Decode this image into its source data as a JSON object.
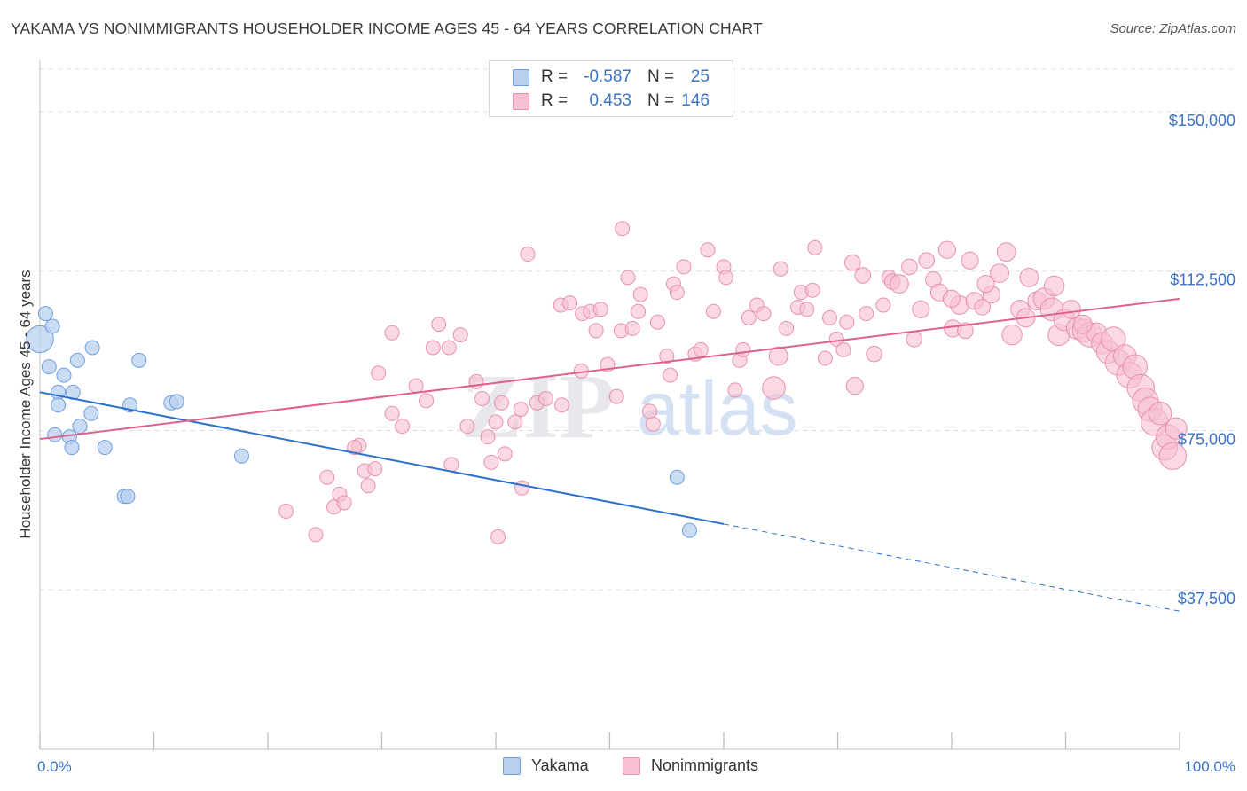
{
  "header": {
    "title": "YAKAMA VS NONIMMIGRANTS HOUSEHOLDER INCOME AGES 45 - 64 YEARS CORRELATION CHART",
    "source": "Source: ZipAtlas.com"
  },
  "watermark": {
    "zip": "ZIP",
    "atlas": "atlas"
  },
  "legend": {
    "rows": [
      {
        "r_label": "R =",
        "r_value": "-0.587",
        "n_label": "N =",
        "n_value": "25"
      },
      {
        "r_label": "R =",
        "r_value": "0.453",
        "n_label": "N =",
        "n_value": "146"
      }
    ]
  },
  "bottom_legend": {
    "series1": "Yakama",
    "series2": "Nonimmigrants"
  },
  "colors": {
    "yakama_fill": "#b8d0f0",
    "yakama_stroke": "#6f9fdc",
    "yakama_line": "#2b6fd0",
    "nonimm_fill": "#f7bfd0",
    "nonimm_stroke": "#e890ae",
    "nonimm_line": "#e0608c",
    "tick_label": "#3b73c4",
    "grid": "#dddddd"
  },
  "chart_data": {
    "type": "scatter",
    "title": "YAKAMA VS NONIMMIGRANTS HOUSEHOLDER INCOME AGES 45 - 64 YEARS CORRELATION CHART",
    "xlabel": "",
    "ylabel": "Householder Income Ages 45 - 64 years",
    "xlim": [
      0,
      100
    ],
    "ylim": [
      0,
      160000
    ],
    "x_tick_labels": [
      "0.0%",
      "100.0%"
    ],
    "y_ticks": [
      37500,
      75000,
      112500,
      150000
    ],
    "y_tick_labels": [
      "$37,500",
      "$75,000",
      "$112,500",
      "$150,000"
    ],
    "series": [
      {
        "name": "Yakama",
        "r": -0.587,
        "n": 25,
        "trend": {
          "x0": 0,
          "y0": 84000,
          "x1": 60,
          "y1": 53000,
          "dash_to_x": 100,
          "dash_to_y": 32500
        },
        "points": [
          [
            0,
            96500,
            1.9
          ],
          [
            0.5,
            102500,
            1
          ],
          [
            1.1,
            99500,
            1
          ],
          [
            0.8,
            90000,
            1
          ],
          [
            2.1,
            88000,
            1
          ],
          [
            3.3,
            91500,
            1
          ],
          [
            4.6,
            94500,
            1
          ],
          [
            1.6,
            84000,
            1
          ],
          [
            2.9,
            84000,
            1
          ],
          [
            1.6,
            81000,
            1
          ],
          [
            4.5,
            79000,
            1
          ],
          [
            1.3,
            74000,
            1
          ],
          [
            2.6,
            73500,
            1
          ],
          [
            3.5,
            76000,
            1
          ],
          [
            2.8,
            71000,
            1
          ],
          [
            5.7,
            71000,
            1
          ],
          [
            7.9,
            81000,
            1
          ],
          [
            8.7,
            91500,
            1
          ],
          [
            11.5,
            81500,
            1
          ],
          [
            12.0,
            81800,
            1
          ],
          [
            7.4,
            59500,
            1
          ],
          [
            7.7,
            59500,
            1
          ],
          [
            17.7,
            69000,
            1
          ],
          [
            55.9,
            64000,
            1
          ],
          [
            57.0,
            51500,
            1
          ]
        ]
      },
      {
        "name": "Nonimmigrants",
        "r": 0.453,
        "n": 146,
        "trend": {
          "x0": 0,
          "y0": 73000,
          "x1": 100,
          "y1": 106000
        },
        "points": [
          [
            21.6,
            56000,
            1
          ],
          [
            24.2,
            50500,
            1
          ],
          [
            25.2,
            64000,
            1
          ],
          [
            25.8,
            57000,
            1
          ],
          [
            26.3,
            60000,
            1
          ],
          [
            26.7,
            58000,
            1
          ],
          [
            28.0,
            71500,
            1
          ],
          [
            27.6,
            71000,
            1
          ],
          [
            28.5,
            65500,
            1
          ],
          [
            28.8,
            62000,
            1
          ],
          [
            29.4,
            66000,
            1
          ],
          [
            29.7,
            88500,
            1
          ],
          [
            30.9,
            98000,
            1
          ],
          [
            30.9,
            79000,
            1
          ],
          [
            31.8,
            76000,
            1
          ],
          [
            33.0,
            85500,
            1
          ],
          [
            33.9,
            82000,
            1
          ],
          [
            34.5,
            94500,
            1
          ],
          [
            35.0,
            100000,
            1
          ],
          [
            35.9,
            94500,
            1
          ],
          [
            36.1,
            67000,
            1
          ],
          [
            36.9,
            97500,
            1
          ],
          [
            37.5,
            76000,
            1
          ],
          [
            38.3,
            86500,
            1
          ],
          [
            38.8,
            82500,
            1
          ],
          [
            39.3,
            73500,
            1
          ],
          [
            39.6,
            67500,
            1
          ],
          [
            40.0,
            77000,
            1
          ],
          [
            40.5,
            81500,
            1
          ],
          [
            40.2,
            50000,
            1
          ],
          [
            40.8,
            69500,
            1
          ],
          [
            41.7,
            77000,
            1
          ],
          [
            42.2,
            80000,
            1
          ],
          [
            42.3,
            61500,
            1
          ],
          [
            42.8,
            116500,
            1
          ],
          [
            43.6,
            81500,
            1
          ],
          [
            44.4,
            82500,
            1
          ],
          [
            45.7,
            104500,
            1
          ],
          [
            45.8,
            81000,
            1
          ],
          [
            46.5,
            105000,
            1
          ],
          [
            47.5,
            89000,
            1
          ],
          [
            47.6,
            102500,
            1
          ],
          [
            48.3,
            103000,
            1
          ],
          [
            48.8,
            98500,
            1
          ],
          [
            49.2,
            103500,
            1
          ],
          [
            49.8,
            90500,
            1
          ],
          [
            50.6,
            83000,
            1
          ],
          [
            51.0,
            98500,
            1
          ],
          [
            51.1,
            122500,
            1
          ],
          [
            51.6,
            111000,
            1
          ],
          [
            52.0,
            99000,
            1
          ],
          [
            52.5,
            103000,
            1
          ],
          [
            52.7,
            107000,
            1
          ],
          [
            53.5,
            79500,
            1
          ],
          [
            53.8,
            76500,
            1
          ],
          [
            54.2,
            100500,
            1
          ],
          [
            55.0,
            92500,
            1
          ],
          [
            55.3,
            88000,
            1
          ],
          [
            55.6,
            109500,
            1
          ],
          [
            55.9,
            107500,
            1
          ],
          [
            56.5,
            113500,
            1
          ],
          [
            57.5,
            93000,
            1
          ],
          [
            58.0,
            94000,
            1
          ],
          [
            58.6,
            117500,
            1
          ],
          [
            59.1,
            103000,
            1
          ],
          [
            60.0,
            113500,
            1
          ],
          [
            60.2,
            111000,
            1
          ],
          [
            61.0,
            84500,
            1
          ],
          [
            61.4,
            91500,
            1
          ],
          [
            61.7,
            94000,
            1
          ],
          [
            62.2,
            101500,
            1
          ],
          [
            62.9,
            104500,
            1
          ],
          [
            63.5,
            102500,
            1
          ],
          [
            64.4,
            85000,
            1.6
          ],
          [
            64.8,
            92500,
            1.3
          ],
          [
            65.0,
            113000,
            1
          ],
          [
            65.5,
            99000,
            1
          ],
          [
            66.5,
            104000,
            1
          ],
          [
            66.8,
            107500,
            1
          ],
          [
            67.3,
            103500,
            1
          ],
          [
            67.8,
            108000,
            1
          ],
          [
            68.9,
            92000,
            1
          ],
          [
            69.3,
            101500,
            1
          ],
          [
            69.9,
            96500,
            1
          ],
          [
            70.5,
            94000,
            1
          ],
          [
            70.8,
            100500,
            1
          ],
          [
            71.3,
            114500,
            1.1
          ],
          [
            71.5,
            85500,
            1.2
          ],
          [
            72.2,
            111500,
            1.1
          ],
          [
            72.5,
            102500,
            1
          ],
          [
            73.2,
            93000,
            1.1
          ],
          [
            74.0,
            104500,
            1
          ],
          [
            74.5,
            111000,
            1
          ],
          [
            74.8,
            110000,
            1.1
          ],
          [
            75.4,
            109500,
            1.3
          ],
          [
            76.3,
            113500,
            1.1
          ],
          [
            76.7,
            96500,
            1.1
          ],
          [
            77.3,
            103500,
            1.2
          ],
          [
            77.8,
            115000,
            1.1
          ],
          [
            78.4,
            110500,
            1.1
          ],
          [
            78.9,
            107500,
            1.2
          ],
          [
            79.6,
            117500,
            1.2
          ],
          [
            80.1,
            99000,
            1.2
          ],
          [
            80.7,
            104500,
            1.3
          ],
          [
            81.6,
            115000,
            1.2
          ],
          [
            81.2,
            98500,
            1.1
          ],
          [
            82.0,
            105500,
            1.2
          ],
          [
            82.7,
            104000,
            1.1
          ],
          [
            83.5,
            107000,
            1.2
          ],
          [
            84.2,
            112000,
            1.3
          ],
          [
            84.8,
            117000,
            1.3
          ],
          [
            85.3,
            97500,
            1.4
          ],
          [
            86.0,
            103500,
            1.3
          ],
          [
            86.8,
            111000,
            1.3
          ],
          [
            87.5,
            105500,
            1.3
          ],
          [
            88.1,
            106000,
            1.5
          ],
          [
            88.8,
            103500,
            1.6
          ],
          [
            89.4,
            97500,
            1.5
          ],
          [
            89.9,
            101000,
            1.5
          ],
          [
            90.5,
            103500,
            1.3
          ],
          [
            91.0,
            99000,
            1.5
          ],
          [
            91.6,
            98500,
            1.6
          ],
          [
            92.1,
            97500,
            1.7
          ],
          [
            92.7,
            98000,
            1.4
          ],
          [
            93.2,
            95500,
            1.5
          ],
          [
            93.7,
            93500,
            1.6
          ],
          [
            94.2,
            96500,
            1.7
          ],
          [
            94.6,
            91000,
            1.8
          ],
          [
            95.2,
            92500,
            1.6
          ],
          [
            95.6,
            88000,
            1.8
          ],
          [
            96.1,
            90000,
            1.7
          ],
          [
            96.6,
            85000,
            1.9
          ],
          [
            97.0,
            82000,
            1.8
          ],
          [
            97.4,
            80000,
            1.7
          ],
          [
            97.8,
            77000,
            1.9
          ],
          [
            98.3,
            79000,
            1.6
          ],
          [
            98.7,
            71000,
            1.8
          ],
          [
            99.0,
            73500,
            1.7
          ],
          [
            99.4,
            69000,
            1.9
          ],
          [
            99.7,
            75500,
            1.5
          ],
          [
            91.5,
            100000,
            1.3
          ],
          [
            89.0,
            109000,
            1.4
          ],
          [
            86.5,
            101500,
            1.3
          ],
          [
            83.0,
            109500,
            1.2
          ],
          [
            80.0,
            106000,
            1.2
          ],
          [
            68.0,
            118000,
            1
          ]
        ]
      }
    ]
  }
}
